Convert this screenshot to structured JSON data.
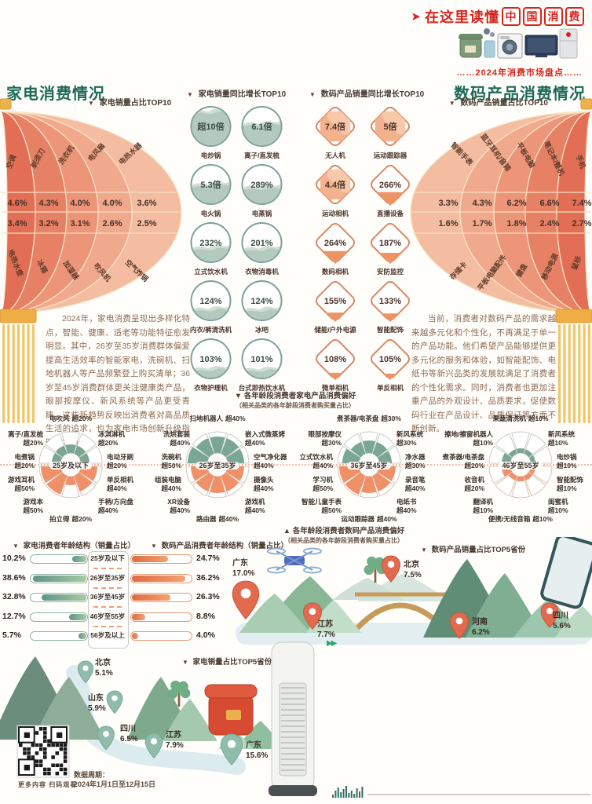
{
  "icons": {
    "triangle_down": "▼",
    "triangle_up": "▲",
    "slogan_arrow": "➤",
    "forward": "▶▶"
  },
  "header": {
    "slogan_plain": "在这里读懂",
    "slogan_boxed": "中国消费",
    "subtitle_decorated": "……2024年消费市场盘点……"
  },
  "appliance_section": {
    "title": "家电消费情况",
    "share_subtitle": "家电销量占比TOP10",
    "share_rows": {
      "top": [
        {
          "label": "空调",
          "value": "4.6%"
        },
        {
          "label": "剃须刀",
          "value": "4.3%"
        },
        {
          "label": "洗衣机",
          "value": "4.0%"
        },
        {
          "label": "电风扇",
          "value": "4.0%"
        },
        {
          "label": "电热水器",
          "value": "3.6%"
        }
      ],
      "bottom": [
        {
          "label": "电热水壶",
          "value": "3.4%"
        },
        {
          "label": "冰箱",
          "value": "3.2%"
        },
        {
          "label": "加湿器",
          "value": "3.1%"
        },
        {
          "label": "吹风机",
          "value": "2.6%"
        },
        {
          "label": "空气炸锅",
          "value": "2.5%"
        }
      ]
    },
    "growth_subtitle": "家电销量同比增长TOP10",
    "growth_top10": [
      {
        "label": "电炒锅",
        "value": "超10倍"
      },
      {
        "label": "离子/直发梳",
        "value": "6.1倍"
      },
      {
        "label": "电火锅",
        "value": "5.3倍"
      },
      {
        "label": "电蒸锅",
        "value": "289%"
      },
      {
        "label": "立式饮水机",
        "value": "232%"
      },
      {
        "label": "衣物消毒机",
        "value": "201%"
      },
      {
        "label": "内衣/裤清洗机",
        "value": "124%"
      },
      {
        "label": "冰吧",
        "value": "124%"
      },
      {
        "label": "衣物护理机",
        "value": "103%"
      },
      {
        "label": "台式即热饮水机",
        "value": "101%"
      }
    ],
    "paragraph": "2024年，家电消费呈现出多样化特点，智能、健康、适老等功能特征愈发明显。其中，26岁至35岁消费群体偏爱提高生活效率的智能家电，洗碗机、扫地机器人等产品频繁登上购买清单；36岁至45岁消费群体更关注健康类产品，眼部按摩仪、新风系统等产品更受青睐。这些新趋势反映出消费者对高品质生活的追求，也为家电市场创新升级指明了方向。"
  },
  "digital_section": {
    "title": "数码产品消费情况",
    "share_subtitle": "数码产品销量占比TOP10",
    "share_rows": {
      "top": [
        {
          "label": "智能手表",
          "value": "3.3%"
        },
        {
          "label": "蓝牙耳机/音箱",
          "value": "4.3%"
        },
        {
          "label": "平板电脑",
          "value": "6.2%"
        },
        {
          "label": "笔记本/整机",
          "value": "6.6%"
        },
        {
          "label": "手机",
          "value": "7.4%"
        }
      ],
      "bottom": [
        {
          "label": "存储卡",
          "value": "1.6%"
        },
        {
          "label": "平板电脑配件",
          "value": "1.7%"
        },
        {
          "label": "键盘",
          "value": "1.8%"
        },
        {
          "label": "移动电源",
          "value": "2.4%"
        },
        {
          "label": "鼠标",
          "value": "2.7%"
        }
      ]
    },
    "growth_subtitle": "数码产品销量同比增长TOP10",
    "growth_top10": [
      {
        "label": "无人机",
        "value": "7.4倍"
      },
      {
        "label": "运动跟踪器",
        "value": "5倍"
      },
      {
        "label": "运动相机",
        "value": "4.4倍"
      },
      {
        "label": "直播设备",
        "value": "266%"
      },
      {
        "label": "数码相机",
        "value": "264%"
      },
      {
        "label": "安防监控",
        "value": "187%"
      },
      {
        "label": "储能/户外电源",
        "value": "155%"
      },
      {
        "label": "智能配饰",
        "value": "133%"
      },
      {
        "label": "微单相机",
        "value": "108%"
      },
      {
        "label": "单反相机",
        "value": "105%"
      }
    ],
    "paragraph": "当前，消费者对数码产品的需求越来越多元化和个性化，不再满足于单一的产品功能。他们希望产品能够提供更多元化的服务和体验，如智能配饰、电纸书等新兴品类的发展就满足了消费者的个性化需求。同时，消费者也更加注重产品的外观设计、品质要求，促使数码行业在产品设计、品质保证等方面不断创新。"
  },
  "age_preference": {
    "appliance_header": "各年龄段消费者家电产品消费偏好",
    "appliance_note": "（相关品类的各年龄段消费者购买量占比）",
    "digital_header": "各年龄段消费者数码产品消费偏好",
    "digital_note": "（相关品类的各年龄段消费者购买量占比）",
    "groups": [
      {
        "age": "25岁及以下",
        "appliance": [
          {
            "label": "电吹风",
            "value": "超20%",
            "pos": "top"
          },
          {
            "label": "离子/直发梳",
            "value": "超20%",
            "pos": "tl"
          },
          {
            "label": "冰淇淋机",
            "value": "超20%",
            "pos": "tr"
          },
          {
            "label": "电煮锅",
            "value": "超20%",
            "pos": "l"
          },
          {
            "label": "电动牙刷",
            "value": "超20%",
            "pos": "r"
          }
        ],
        "digital": [
          {
            "label": "游戏耳机",
            "value": "超50%",
            "pos": "l"
          },
          {
            "label": "单反相机",
            "value": "超40%",
            "pos": "r"
          },
          {
            "label": "游戏本",
            "value": "超50%",
            "pos": "bl"
          },
          {
            "label": "手柄/方向盘",
            "value": "超40%",
            "pos": "br"
          },
          {
            "label": "拍立得",
            "value": "超20%",
            "pos": "bottom"
          }
        ]
      },
      {
        "age": "26岁至35岁",
        "appliance": [
          {
            "label": "扫地机器人",
            "value": "超40%",
            "pos": "top"
          },
          {
            "label": "洗烘套装",
            "value": "超40%",
            "pos": "tl"
          },
          {
            "label": "嵌入式微蒸烤",
            "value": "超40%",
            "pos": "tr"
          },
          {
            "label": "洗碗机",
            "value": "超50%",
            "pos": "l"
          },
          {
            "label": "空气净化器",
            "value": "超40%",
            "pos": "r"
          }
        ],
        "digital": [
          {
            "label": "组装电脑",
            "value": "超40%",
            "pos": "l"
          },
          {
            "label": "摄像头",
            "value": "超40%",
            "pos": "r"
          },
          {
            "label": "XR设备",
            "value": "超40%",
            "pos": "bl"
          },
          {
            "label": "游戏机",
            "value": "超40%",
            "pos": "br"
          },
          {
            "label": "路由器",
            "value": "超40%",
            "pos": "bottom"
          }
        ]
      },
      {
        "age": "36岁至45岁",
        "appliance": [
          {
            "label": "煮茶器/电茶盘",
            "value": "超30%",
            "pos": "top"
          },
          {
            "label": "眼部按摩仪",
            "value": "超30%",
            "pos": "tl"
          },
          {
            "label": "新风系统",
            "value": "超30%",
            "pos": "tr"
          },
          {
            "label": "立式饮水机",
            "value": "超40%",
            "pos": "l"
          },
          {
            "label": "净水器",
            "value": "超30%",
            "pos": "r"
          }
        ],
        "digital": [
          {
            "label": "学习机",
            "value": "超50%",
            "pos": "l"
          },
          {
            "label": "录音笔",
            "value": "超40%",
            "pos": "r"
          },
          {
            "label": "智能儿童手表",
            "value": "超50%",
            "pos": "bl"
          },
          {
            "label": "电纸书",
            "value": "超40%",
            "pos": "br"
          },
          {
            "label": "运动跟踪器",
            "value": "超40%",
            "pos": "bottom"
          }
        ]
      },
      {
        "age": "46岁至55岁",
        "appliance": [
          {
            "label": "果蔬清洗机",
            "value": "超10%",
            "pos": "top"
          },
          {
            "label": "擦地/擦窗机器人",
            "value": "超10%",
            "pos": "tl"
          },
          {
            "label": "新风系统",
            "value": "超10%",
            "pos": "tr"
          },
          {
            "label": "煮茶器/电茶盘",
            "value": "超20%",
            "pos": "l"
          },
          {
            "label": "电炒锅",
            "value": "超10%",
            "pos": "r"
          }
        ],
        "digital": [
          {
            "label": "收音机",
            "value": "超20%",
            "pos": "l"
          },
          {
            "label": "智能配饰",
            "value": "超10%",
            "pos": "r"
          },
          {
            "label": "翻译机",
            "value": "超10%",
            "pos": "bl"
          },
          {
            "label": "闺蜜机",
            "value": "超10%",
            "pos": "br"
          },
          {
            "label": "便携/无线音箱",
            "value": "超10%",
            "pos": "bottom"
          }
        ]
      }
    ]
  },
  "age_structure": {
    "appliance_header": "家电消费者年龄结构（销量占比）",
    "digital_header": "数码产品消费者年龄结构（销量占比）",
    "categories": [
      "25岁及以下",
      "26岁至35岁",
      "36岁至45岁",
      "46岁至55岁",
      "56岁及以上"
    ],
    "appliance": [
      "10.2%",
      "38.6%",
      "32.8%",
      "12.7%",
      "5.7%"
    ],
    "digital": [
      "24.7%",
      "36.2%",
      "26.3%",
      "8.8%",
      "4.0%"
    ]
  },
  "provinces": {
    "digital_header": "数码产品销量占比TOP5省份",
    "digital_top5": [
      {
        "name": "广东",
        "value": "17.0%"
      },
      {
        "name": "北京",
        "value": "7.5%"
      },
      {
        "name": "江苏",
        "value": "7.7%"
      },
      {
        "name": "河南",
        "value": "6.2%"
      },
      {
        "name": "四川",
        "value": "5.6%"
      }
    ],
    "appliance_header": "家电销量占比TOP5省份",
    "appliance_top5": [
      {
        "name": "北京",
        "value": "5.1%"
      },
      {
        "name": "山东",
        "value": "5.9%"
      },
      {
        "name": "四川",
        "value": "6.5%"
      },
      {
        "name": "江苏",
        "value": "7.9%"
      },
      {
        "name": "广东",
        "value": "15.6%"
      }
    ]
  },
  "footer": {
    "qr_caption": "更多内容 扫码观看",
    "data_period_label": "数据周期：",
    "data_period": "2024年1月1日至12月15日"
  },
  "colors": {
    "accent_red": "#d8251c",
    "title_teal": "#1e6a58",
    "coral": "#e4765a",
    "sage": "#79a198",
    "orange_fill": "#ef9068",
    "green_fill": "#7aa694"
  },
  "chart_data": [
    {
      "type": "pie",
      "title": "家电销量占比TOP10",
      "unit": "%",
      "categories": [
        "空调",
        "剃须刀",
        "洗衣机",
        "电风扇",
        "电热水器",
        "电热水壶",
        "冰箱",
        "加湿器",
        "吹风机",
        "空气炸锅"
      ],
      "values": [
        4.6,
        4.3,
        4.0,
        4.0,
        3.6,
        3.4,
        3.2,
        3.1,
        2.6,
        2.5
      ]
    },
    {
      "type": "bar",
      "title": "家电销量同比增长TOP10",
      "categories": [
        "电炒锅",
        "离子/直发梳",
        "电火锅",
        "电蒸锅",
        "立式饮水机",
        "衣物消毒机",
        "内衣/裤清洗机",
        "冰吧",
        "衣物护理机",
        "台式即热饮水机"
      ],
      "values": [
        "超10倍",
        "6.1倍",
        "5.3倍",
        "289%",
        "232%",
        "201%",
        "124%",
        "124%",
        "103%",
        "101%"
      ]
    },
    {
      "type": "bar",
      "title": "数码产品销量同比增长TOP10",
      "categories": [
        "无人机",
        "运动跟踪器",
        "运动相机",
        "直播设备",
        "数码相机",
        "安防监控",
        "储能/户外电源",
        "智能配饰",
        "微单相机",
        "单反相机"
      ],
      "values": [
        "7.4倍",
        "5倍",
        "4.4倍",
        "266%",
        "264%",
        "187%",
        "155%",
        "133%",
        "108%",
        "105%"
      ]
    },
    {
      "type": "pie",
      "title": "数码产品销量占比TOP10",
      "unit": "%",
      "categories": [
        "手机",
        "笔记本/整机",
        "平板电脑",
        "蓝牙耳机/音箱",
        "智能手表",
        "鼠标",
        "移动电源",
        "键盘",
        "平板电脑配件",
        "存储卡"
      ],
      "values": [
        7.4,
        6.6,
        6.2,
        4.3,
        3.3,
        2.7,
        2.4,
        1.8,
        1.7,
        1.6
      ]
    },
    {
      "type": "table",
      "title": "各年龄段消费者家电产品消费偏好",
      "note": "相关品类的各年龄段消费者购买量占比",
      "groups": [
        {
          "age": "25岁及以下",
          "items": [
            [
              "电吹风",
              "超20%"
            ],
            [
              "离子/直发梳",
              "超20%"
            ],
            [
              "冰淇淋机",
              "超20%"
            ],
            [
              "电煮锅",
              "超20%"
            ],
            [
              "电动牙刷",
              "超20%"
            ]
          ]
        },
        {
          "age": "26岁至35岁",
          "items": [
            [
              "扫地机器人",
              "超40%"
            ],
            [
              "洗烘套装",
              "超40%"
            ],
            [
              "嵌入式微蒸烤",
              "超40%"
            ],
            [
              "洗碗机",
              "超50%"
            ],
            [
              "空气净化器",
              "超40%"
            ]
          ]
        },
        {
          "age": "36岁至45岁",
          "items": [
            [
              "煮茶器/电茶盘",
              "超30%"
            ],
            [
              "眼部按摩仪",
              "超30%"
            ],
            [
              "新风系统",
              "超30%"
            ],
            [
              "立式饮水机",
              "超40%"
            ],
            [
              "净水器",
              "超30%"
            ]
          ]
        },
        {
          "age": "46岁至55岁",
          "items": [
            [
              "果蔬清洗机",
              "超10%"
            ],
            [
              "擦地/擦窗机器人",
              "超10%"
            ],
            [
              "新风系统",
              "超10%"
            ],
            [
              "煮茶器/电茶盘",
              "超20%"
            ],
            [
              "电炒锅",
              "超10%"
            ]
          ]
        }
      ]
    },
    {
      "type": "table",
      "title": "各年龄段消费者数码产品消费偏好",
      "note": "相关品类的各年龄段消费者购买量占比",
      "groups": [
        {
          "age": "25岁及以下",
          "items": [
            [
              "游戏耳机",
              "超50%"
            ],
            [
              "游戏本",
              "超50%"
            ],
            [
              "单反相机",
              "超40%"
            ],
            [
              "手柄/方向盘",
              "超40%"
            ],
            [
              "拍立得",
              "超20%"
            ]
          ]
        },
        {
          "age": "26岁至35岁",
          "items": [
            [
              "组装电脑",
              "超40%"
            ],
            [
              "摄像头",
              "超40%"
            ],
            [
              "XR设备",
              "超40%"
            ],
            [
              "游戏机",
              "超40%"
            ],
            [
              "路由器",
              "超40%"
            ]
          ]
        },
        {
          "age": "36岁至45岁",
          "items": [
            [
              "学习机",
              "超50%"
            ],
            [
              "智能儿童手表",
              "超50%"
            ],
            [
              "录音笔",
              "超40%"
            ],
            [
              "电纸书",
              "超40%"
            ],
            [
              "运动跟踪器",
              "超40%"
            ]
          ]
        },
        {
          "age": "46岁至55岁",
          "items": [
            [
              "收音机",
              "超20%"
            ],
            [
              "智能配饰",
              "超10%"
            ],
            [
              "翻译机",
              "超10%"
            ],
            [
              "闺蜜机",
              "超10%"
            ],
            [
              "便携/无线音箱",
              "超10%"
            ]
          ]
        }
      ]
    },
    {
      "type": "bar",
      "title": "家电消费者年龄结构（销量占比）",
      "unit": "%",
      "categories": [
        "25岁及以下",
        "26岁至35岁",
        "36岁至45岁",
        "46岁至55岁",
        "56岁及以上"
      ],
      "values": [
        10.2,
        38.6,
        32.8,
        12.7,
        5.7
      ]
    },
    {
      "type": "bar",
      "title": "数码产品消费者年龄结构（销量占比）",
      "unit": "%",
      "categories": [
        "25岁及以下",
        "26岁至35岁",
        "36岁至45岁",
        "46岁至55岁",
        "56岁及以上"
      ],
      "values": [
        24.7,
        36.2,
        26.3,
        8.8,
        4.0
      ]
    },
    {
      "type": "bar",
      "title": "数码产品销量占比TOP5省份",
      "unit": "%",
      "categories": [
        "广东",
        "江苏",
        "北京",
        "河南",
        "四川"
      ],
      "values": [
        17.0,
        7.7,
        7.5,
        6.2,
        5.6
      ]
    },
    {
      "type": "bar",
      "title": "家电销量占比TOP5省份",
      "unit": "%",
      "categories": [
        "广东",
        "江苏",
        "四川",
        "山东",
        "北京"
      ],
      "values": [
        15.6,
        7.9,
        6.5,
        5.9,
        5.1
      ]
    }
  ]
}
